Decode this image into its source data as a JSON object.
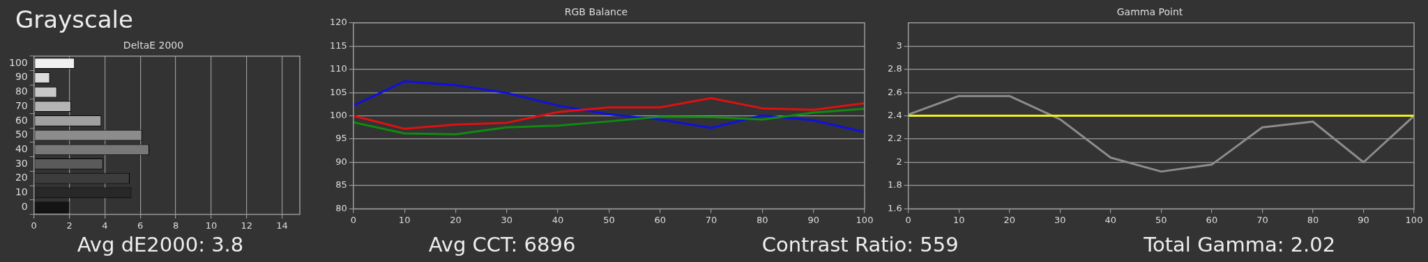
{
  "chart_data": [
    {
      "type": "bar",
      "title": "Grayscale",
      "subtitle": "DeltaE 2000",
      "orientation": "horizontal",
      "categories": [
        "100",
        "90",
        "80",
        "70",
        "60",
        "50",
        "40",
        "30",
        "20",
        "10",
        "0"
      ],
      "values": [
        2.3,
        0.9,
        1.3,
        2.1,
        3.8,
        6.1,
        6.5,
        3.9,
        5.4,
        5.5,
        2.0
      ],
      "colors": [
        "#f0f0f0",
        "#dcdcdc",
        "#c8c8c8",
        "#b4b4b4",
        "#a0a0a0",
        "#8c8c8c",
        "#787878",
        "#5a5a5a",
        "#3c3c3c",
        "#282828",
        "#141414"
      ],
      "xlim": [
        0,
        15
      ],
      "xticks": [
        0,
        2,
        4,
        6,
        8,
        10,
        12,
        14
      ],
      "grid": "x",
      "annotations": [
        "Avg dE2000: 3.8"
      ]
    },
    {
      "type": "line",
      "title": "RGB Balance",
      "x": [
        0,
        10,
        20,
        30,
        40,
        50,
        60,
        70,
        80,
        90,
        100
      ],
      "marker": "none",
      "grid": "y",
      "series": [
        {
          "color": "#e01010",
          "values": [
            100,
            97.2,
            98.1,
            98.5,
            100.8,
            101.8,
            101.8,
            103.8,
            101.6,
            101.3,
            102.7
          ]
        },
        {
          "color": "#108a10",
          "values": [
            98.6,
            96.2,
            96.0,
            97.5,
            97.9,
            98.8,
            99.8,
            99.7,
            99.2,
            100.7,
            101.5
          ]
        },
        {
          "color": "#1010e0",
          "values": [
            102.2,
            107.4,
            106.6,
            104.9,
            102.2,
            100.3,
            99.2,
            97.4,
            100.1,
            99.0,
            96.5
          ]
        }
      ],
      "xlim": [
        0,
        100
      ],
      "xticks": [
        0,
        10,
        20,
        30,
        40,
        50,
        60,
        70,
        80,
        90,
        100
      ],
      "ylim": [
        80,
        120
      ],
      "yticks": [
        80,
        85,
        90,
        95,
        100,
        105,
        110,
        115,
        120
      ],
      "annotations": [
        "Avg CCT: 6896"
      ]
    },
    {
      "type": "line",
      "title": "Gamma Point",
      "x": [
        0,
        10,
        20,
        30,
        40,
        50,
        60,
        70,
        80,
        90,
        100
      ],
      "marker": "none",
      "grid": "y",
      "series": [
        {
          "color": "#8c8c8c",
          "values": [
            2.41,
            2.57,
            2.57,
            2.37,
            2.04,
            1.92,
            1.98,
            2.3,
            2.35,
            2.0,
            2.4
          ]
        }
      ],
      "ref_lines": [
        {
          "axis": "y",
          "value": 2.4,
          "color": "#f0f020"
        }
      ],
      "xlim": [
        0,
        100
      ],
      "xticks": [
        0,
        10,
        20,
        30,
        40,
        50,
        60,
        70,
        80,
        90,
        100
      ],
      "ylim": [
        1.6,
        3.2
      ],
      "yticks": [
        1.6,
        1.8,
        2,
        2.2,
        2.4,
        2.6,
        2.8,
        3
      ],
      "annotations": [
        "Contrast Ratio: 559",
        "Total Gamma: 2.02"
      ]
    }
  ]
}
